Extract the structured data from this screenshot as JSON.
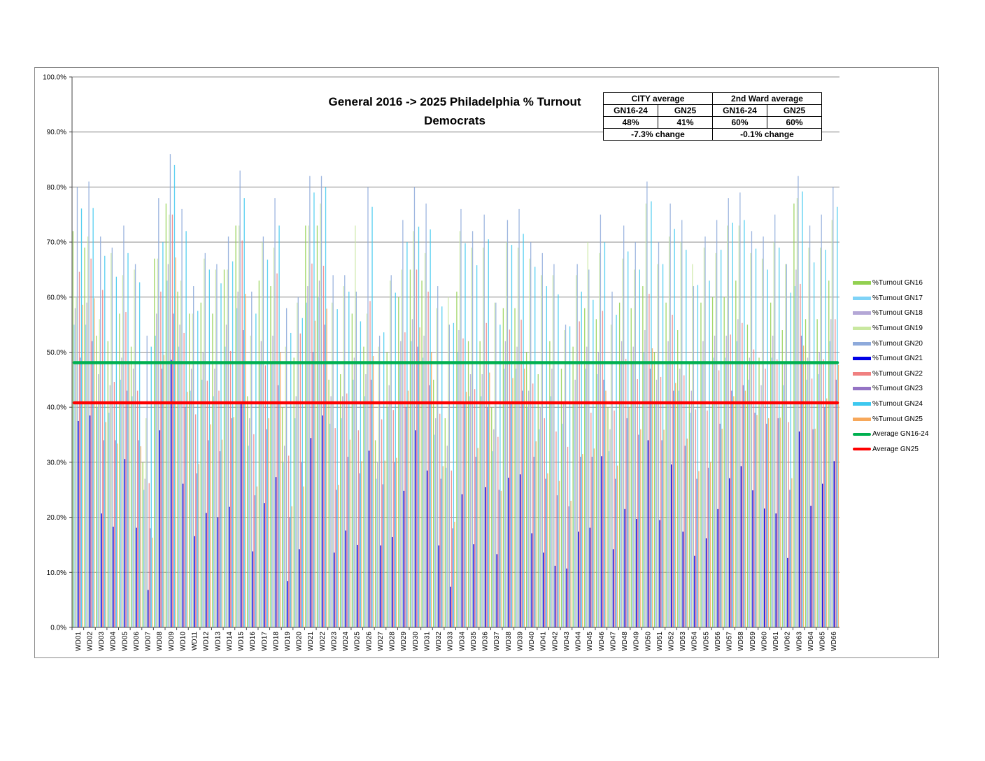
{
  "chart_data": {
    "type": "bar",
    "title": "General 2016 -> 2025 Philadelphia % Turnout",
    "subtitle": "Democrats",
    "ylim": [
      0,
      100
    ],
    "y_ticks": [
      "0.0%",
      "10.0%",
      "20.0%",
      "30.0%",
      "40.0%",
      "50.0%",
      "60.0%",
      "70.0%",
      "80.0%",
      "90.0%",
      "100.0%"
    ],
    "grid": true,
    "legend_position": "right",
    "categories": [
      "WD01",
      "WD02",
      "WD03",
      "WD04",
      "WD05",
      "WD06",
      "WD07",
      "WD08",
      "WD09",
      "WD10",
      "WD11",
      "WD12",
      "WD13",
      "WD14",
      "WD15",
      "WD16",
      "WD17",
      "WD18",
      "WD19",
      "WD20",
      "WD21",
      "WD22",
      "WD23",
      "WD24",
      "WD25",
      "WD26",
      "WD27",
      "WD28",
      "WD29",
      "WD30",
      "WD31",
      "WD32",
      "WD33",
      "WD34",
      "WD35",
      "WD36",
      "WD37",
      "WD38",
      "WD39",
      "WD40",
      "WD41",
      "WD42",
      "WD43",
      "WD44",
      "WD45",
      "WD46",
      "WD47",
      "WD48",
      "WD49",
      "WD50",
      "WD51",
      "WD52",
      "WD53",
      "WD54",
      "WD55",
      "WD56",
      "WD57",
      "WD58",
      "WD59",
      "WD60",
      "WD61",
      "WD62",
      "WD63",
      "WD64",
      "WD65",
      "WD66"
    ],
    "series": [
      {
        "name": "%Turnout GN16",
        "color": "#92d050",
        "values": [
          72,
          69,
          53,
          52,
          57,
          51,
          30,
          67,
          77,
          61,
          57,
          59,
          57,
          65,
          73,
          42,
          63,
          62,
          40,
          49,
          73,
          73,
          45,
          46,
          57,
          51,
          34,
          50,
          60,
          65,
          63,
          45,
          38,
          61,
          52,
          52,
          40,
          58,
          58,
          50,
          46,
          52,
          47,
          51,
          58,
          56,
          40,
          59,
          58,
          62,
          50,
          59,
          54,
          48,
          59,
          60,
          60,
          63,
          55,
          49,
          59,
          54,
          77,
          56,
          56,
          63
        ]
      },
      {
        "name": "%Turnout GN17",
        "color": "#7fd3f7",
        "values": [
          55,
          55,
          40,
          39,
          45,
          42,
          25,
          53,
          63,
          51,
          43,
          45,
          42,
          51,
          58,
          33,
          48,
          48,
          30,
          38,
          59,
          60,
          37,
          38,
          45,
          42,
          27,
          40,
          48,
          52,
          49,
          35,
          29,
          50,
          42,
          42,
          32,
          47,
          47,
          40,
          36,
          42,
          37,
          41,
          47,
          46,
          32,
          48,
          48,
          50,
          41,
          48,
          43,
          39,
          48,
          49,
          49,
          52,
          45,
          40,
          49,
          44,
          62,
          45,
          46,
          52
        ]
      },
      {
        "name": "%Turnout GN18",
        "color": "#b4a7d6",
        "values": [
          58,
          59,
          46,
          44,
          49,
          47,
          27,
          57,
          66,
          55,
          47,
          50,
          47,
          55,
          61,
          38,
          52,
          53,
          33,
          42,
          62,
          63,
          42,
          42,
          49,
          46,
          30,
          44,
          52,
          56,
          53,
          38,
          33,
          54,
          46,
          46,
          36,
          52,
          51,
          43,
          40,
          47,
          41,
          45,
          51,
          50,
          36,
          52,
          51,
          54,
          45,
          52,
          47,
          43,
          52,
          53,
          53,
          56,
          49,
          44,
          53,
          48,
          65,
          49,
          50,
          56
        ]
      },
      {
        "name": "%Turnout GN19",
        "color": "#c9e8a0",
        "values": [
          60,
          71,
          56,
          68,
          64,
          65,
          38,
          67,
          75,
          63,
          57,
          67,
          65,
          65,
          73,
          53,
          70,
          69,
          51,
          59,
          73,
          77,
          59,
          62,
          73,
          57,
          51,
          63,
          65,
          72,
          68,
          58,
          60,
          72,
          69,
          69,
          59,
          70,
          69,
          67,
          64,
          64,
          54,
          64,
          70,
          68,
          55,
          67,
          65,
          77,
          66,
          71,
          70,
          66,
          69,
          68,
          73,
          73,
          68,
          67,
          70,
          66,
          78,
          69,
          69,
          74
        ]
      },
      {
        "name": "%Turnout GN20",
        "color": "#8eaadb",
        "values": [
          80,
          81,
          71,
          69,
          73,
          66,
          53,
          78,
          86,
          76,
          62,
          68,
          66,
          71,
          83,
          61,
          71,
          78,
          58,
          60,
          82,
          82,
          64,
          64,
          61,
          80,
          53,
          64,
          74,
          80,
          77,
          62,
          55,
          76,
          72,
          75,
          59,
          74,
          76,
          70,
          68,
          66,
          55,
          66,
          65,
          75,
          61,
          73,
          70,
          81,
          70,
          77,
          74,
          62,
          71,
          74,
          78,
          79,
          72,
          71,
          75,
          66,
          82,
          73,
          75,
          80
        ]
      },
      {
        "name": "%Turnout GN21",
        "color": "#0000e6",
        "values": [
          37.5,
          38.5,
          20.7,
          18.3,
          30.6,
          18.1,
          6.8,
          35.8,
          48.6,
          26.1,
          16.6,
          20.8,
          20.0,
          21.9,
          40.9,
          13.8,
          22.6,
          27.3,
          8.4,
          14.2,
          34.4,
          38.5,
          13.6,
          17.6,
          15.0,
          32.1,
          14.9,
          16.4,
          24.8,
          35.8,
          28.5,
          14.9,
          7.4,
          24.2,
          15.1,
          25.5,
          13.3,
          27.2,
          27.8,
          17.1,
          13.6,
          11.2,
          10.7,
          17.4,
          18.1,
          31.1,
          14.2,
          21.5,
          19.7,
          34.0,
          19.5,
          29.6,
          17.4,
          13.0,
          16.2,
          21.5,
          27.1,
          29.3,
          24.9,
          21.6,
          20.7,
          12.6,
          35.6,
          22.1,
          26.1,
          30.2
        ]
      },
      {
        "name": "%Turnout GN22",
        "color": "#f08080",
        "values": [
          64.6,
          67.0,
          61.3,
          44.6,
          57.3,
          43.0,
          26.2,
          61.0,
          75.0,
          53.5,
          38.7,
          44.8,
          43.0,
          50.2,
          70.3,
          35.1,
          47.6,
          64.3,
          31.2,
          53.4,
          66.1,
          65.7,
          36.2,
          42.5,
          35.8,
          59.3,
          37.8,
          39.5,
          53.6,
          65.0,
          61.0,
          38.8,
          28.5,
          52.5,
          43.3,
          55.3,
          34.6,
          54.1,
          55.9,
          44.3,
          38.0,
          35.6,
          32.8,
          55.6,
          39.0,
          57.5,
          39.4,
          48.8,
          45.1,
          60.6,
          45.5,
          56.8,
          45.8,
          39.6,
          39.4,
          46.7,
          53.2,
          55.3,
          50.5,
          47.0,
          48.7,
          37.3,
          62.4,
          45.2,
          48.7,
          56.0
        ]
      },
      {
        "name": "%Turnout GN23",
        "color": "#9473c4",
        "values": [
          49,
          52,
          34,
          34,
          43,
          34,
          18,
          47,
          57,
          40,
          28,
          34,
          32,
          38,
          54,
          24,
          36,
          44,
          20,
          30,
          50,
          55,
          25,
          31,
          28,
          45,
          26,
          30,
          40,
          51,
          44,
          27,
          18,
          41,
          31,
          40,
          25,
          41,
          43,
          31,
          27,
          24,
          22,
          31,
          31,
          45,
          27,
          38,
          35,
          47,
          34,
          43,
          33,
          27,
          29,
          37,
          43,
          44,
          39,
          37,
          38,
          25,
          53,
          36,
          40,
          45
        ]
      },
      {
        "name": "%Turnout GN24",
        "color": "#3dc8ef",
        "values": [
          76.1,
          76.2,
          67.5,
          63.7,
          68.0,
          62.7,
          51.0,
          70.0,
          84.0,
          72.0,
          57.5,
          65.0,
          62.5,
          66.5,
          78.0,
          57.0,
          66.8,
          73.0,
          53.5,
          56.2,
          79.0,
          80.0,
          57.8,
          61.0,
          55.6,
          76.4,
          53.6,
          60.8,
          70.0,
          72.8,
          72.3,
          58.3,
          55.3,
          69.8,
          65.8,
          70.5,
          55.0,
          69.5,
          71.5,
          65.5,
          62.0,
          60.5,
          54.7,
          61.0,
          59.5,
          70.0,
          56.8,
          68.3,
          65.0,
          77.4,
          66.0,
          72.4,
          68.6,
          62.2,
          63.0,
          68.6,
          73.5,
          74.0,
          68.8,
          65.0,
          69.0,
          60.8,
          79.2,
          66.3,
          68.6,
          76.4
        ]
      },
      {
        "name": "%Turnout GN25",
        "color": "#f7a85a",
        "values": [
          58.6,
          59.8,
          37.3,
          33.4,
          48.2,
          32.9,
          16.3,
          49.5,
          67.2,
          42.8,
          29.7,
          36.9,
          34.1,
          38.2,
          60.6,
          25.6,
          38.0,
          50.0,
          22.0,
          25.6,
          55.7,
          57.9,
          25.9,
          34.1,
          30.2,
          49.3,
          30.3,
          30.8,
          43.0,
          54.5,
          50.0,
          29.3,
          19.2,
          42.8,
          32.6,
          46.3,
          24.8,
          45.3,
          47.0,
          33.8,
          28.0,
          26.6,
          23.0,
          31.5,
          32.5,
          43.0,
          29.4,
          40.0,
          36.0,
          50.7,
          35.9,
          44.4,
          34.3,
          28.4,
          30.0,
          36.1,
          42.0,
          43.0,
          38.6,
          38.0,
          38.1,
          27.1,
          51.2,
          36.1,
          41.6,
          47.7
        ]
      }
    ],
    "reference_lines": [
      {
        "name": "Average GN16-24",
        "color": "#00b050",
        "value": 48.1
      },
      {
        "name": "Average GN25",
        "color": "#ff0000",
        "value": 40.8
      }
    ]
  },
  "summary_table": {
    "city_label": "CITY average",
    "ward_label": "2nd Ward average",
    "col_a": "GN16-24",
    "col_b": "GN25",
    "city_a": "48%",
    "city_b": "41%",
    "ward_a": "60%",
    "ward_b": "60%",
    "city_change": "-7.3% change",
    "ward_change": "-0.1% change"
  }
}
